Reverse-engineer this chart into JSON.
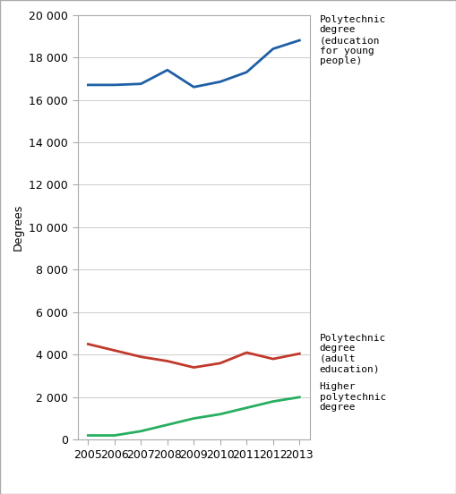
{
  "years": [
    2005,
    2006,
    2007,
    2008,
    2009,
    2010,
    2011,
    2012,
    2013
  ],
  "blue_values": [
    16700,
    16700,
    16750,
    17400,
    16600,
    16850,
    17300,
    18400,
    18800
  ],
  "red_values": [
    4500,
    4200,
    3900,
    3700,
    3400,
    3600,
    4100,
    3800,
    4050
  ],
  "green_values": [
    200,
    200,
    400,
    700,
    1000,
    1200,
    1500,
    1800,
    2000
  ],
  "blue_color": "#1f5fa6",
  "red_color": "#c0392b",
  "green_color": "#27ae60",
  "ylabel": "Degrees",
  "ylim": [
    0,
    20000
  ],
  "yticks": [
    0,
    2000,
    4000,
    6000,
    8000,
    10000,
    12000,
    14000,
    16000,
    18000,
    20000
  ],
  "blue_label": "Polytechnic\ndegree\n(education\nfor young\npeople)",
  "red_label": "Polytechnic\ndegree\n(adult\neducation)",
  "green_label": "Higher\npolytechnic\ndegree",
  "background_color": "#ffffff",
  "line_width": 2.0,
  "border_color": "#aaaaaa",
  "grid_color": "#cccccc",
  "tick_label_fontsize": 9,
  "ylabel_fontsize": 9,
  "annot_fontsize": 8
}
